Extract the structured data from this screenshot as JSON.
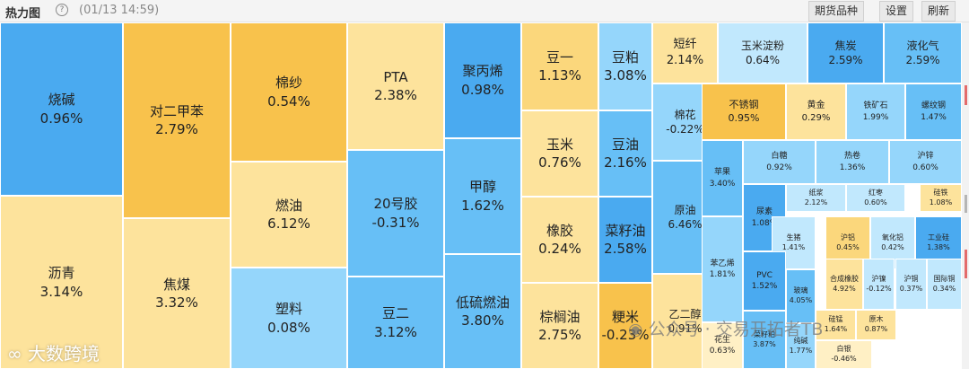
{
  "header": {
    "title": "热力图",
    "help_icon": "?",
    "timestamp": "(01/13 14:59)"
  },
  "buttons": {
    "futures_list": "期货品种",
    "settings": "设置",
    "refresh": "刷新"
  },
  "colors": {
    "deep_blue": "#4aaaf0",
    "mid_blue": "#67bff6",
    "light_blue": "#95d6fb",
    "pale_blue": "#c1e8fd",
    "deep_orange": "#f8c24c",
    "orange": "#fbd77c",
    "light_orange": "#fde39c",
    "pale_yellow": "#fff0c5"
  },
  "cells": [
    {
      "name": "烧碱",
      "value": "0.96%",
      "color": "#4aaaf0"
    },
    {
      "name": "沥青",
      "value": "3.14%",
      "color": "#fde39c"
    },
    {
      "name": "对二甲苯",
      "value": "2.79%",
      "color": "#f8c24c"
    },
    {
      "name": "焦煤",
      "value": "3.32%",
      "color": "#fde39c"
    },
    {
      "name": "棉纱",
      "value": "0.54%",
      "color": "#f8c24c"
    },
    {
      "name": "燃油",
      "value": "6.12%",
      "color": "#fde39c"
    },
    {
      "name": "塑料",
      "value": "0.08%",
      "color": "#95d6fb"
    },
    {
      "name": "PTA",
      "value": "2.38%",
      "color": "#fde39c"
    },
    {
      "name": "20号胶",
      "value": "-0.31%",
      "color": "#67bff6"
    },
    {
      "name": "豆二",
      "value": "3.12%",
      "color": "#67bff6"
    },
    {
      "name": "聚丙烯",
      "value": "0.98%",
      "color": "#4aaaf0"
    },
    {
      "name": "甲醇",
      "value": "1.62%",
      "color": "#67bff6"
    },
    {
      "name": "低硫燃油",
      "value": "3.80%",
      "color": "#67bff6"
    },
    {
      "name": "豆一",
      "value": "1.13%",
      "color": "#fbd77c"
    },
    {
      "name": "玉米",
      "value": "0.76%",
      "color": "#fde39c"
    },
    {
      "name": "橡胶",
      "value": "0.24%",
      "color": "#fde39c"
    },
    {
      "name": "棕榈油",
      "value": "2.75%",
      "color": "#fde39c"
    },
    {
      "name": "豆粕",
      "value": "3.08%",
      "color": "#95d6fb"
    },
    {
      "name": "豆油",
      "value": "2.16%",
      "color": "#67bff6"
    },
    {
      "name": "菜籽油",
      "value": "2.58%",
      "color": "#4aaaf0"
    },
    {
      "name": "粳米",
      "value": "-0.23%",
      "color": "#f8c24c"
    },
    {
      "name": "短纤",
      "value": "2.14%",
      "color": "#fde39c"
    },
    {
      "name": "棉花",
      "value": "-0.22%",
      "color": "#95d6fb"
    },
    {
      "name": "原油",
      "value": "6.46%",
      "color": "#67bff6"
    },
    {
      "name": "乙二醇",
      "value": "0.91%",
      "color": "#fde39c"
    },
    {
      "name": "玉米淀粉",
      "value": "0.64%",
      "color": "#c1e8fd"
    },
    {
      "name": "焦炭",
      "value": "2.59%",
      "color": "#4aaaf0"
    },
    {
      "name": "液化气",
      "value": "2.59%",
      "color": "#67bff6"
    },
    {
      "name": "不锈钢",
      "value": "0.95%",
      "color": "#f8c24c"
    },
    {
      "name": "黄金",
      "value": "0.29%",
      "color": "#fde39c"
    },
    {
      "name": "铁矿石",
      "value": "1.99%",
      "color": "#95d6fb"
    },
    {
      "name": "螺纹钢",
      "value": "1.47%",
      "color": "#67bff6"
    },
    {
      "name": "苹果",
      "value": "3.40%",
      "color": "#67bff6"
    },
    {
      "name": "白糖",
      "value": "0.92%",
      "color": "#95d6fb"
    },
    {
      "name": "热卷",
      "value": "1.36%",
      "color": "#95d6fb"
    },
    {
      "name": "沪锌",
      "value": "0.60%",
      "color": "#95d6fb"
    },
    {
      "name": "纸浆",
      "value": "2.12%",
      "color": "#c1e8fd"
    },
    {
      "name": "红枣",
      "value": "0.60%",
      "color": "#c1e8fd"
    },
    {
      "name": "硅铁",
      "value": "1.08%",
      "color": "#fde39c"
    },
    {
      "name": "尿素",
      "value": "1.08%",
      "color": "#4aaaf0"
    },
    {
      "name": "苯乙烯",
      "value": "1.81%",
      "color": "#95d6fb"
    },
    {
      "name": "生猪",
      "value": "1.41%",
      "color": "#c1e8fd"
    },
    {
      "name": "沪铝",
      "value": "0.45%",
      "color": "#fbd77c"
    },
    {
      "name": "氧化铝",
      "value": "0.42%",
      "color": "#c1e8fd"
    },
    {
      "name": "工业硅",
      "value": "1.38%",
      "color": "#4aaaf0"
    },
    {
      "name": "PVC",
      "value": "1.52%",
      "color": "#4aaaf0"
    },
    {
      "name": "玻璃",
      "value": "4.05%",
      "color": "#67bff6"
    },
    {
      "name": "合成橡胶",
      "value": "4.92%",
      "color": "#fde39c"
    },
    {
      "name": "沪镍",
      "value": "-0.12%",
      "color": "#c1e8fd"
    },
    {
      "name": "沪铜",
      "value": "0.37%",
      "color": "#c1e8fd"
    },
    {
      "name": "国际铜",
      "value": "0.34%",
      "color": "#c1e8fd"
    },
    {
      "name": "菜籽粕",
      "value": "3.87%",
      "color": "#67bff6"
    },
    {
      "name": "花生",
      "value": "0.63%",
      "color": "#fff0c5"
    },
    {
      "name": "纯碱",
      "value": "1.77%",
      "color": "#95d6fb"
    },
    {
      "name": "硅锰",
      "value": "1.64%",
      "color": "#fde39c"
    },
    {
      "name": "原木",
      "value": "0.87%",
      "color": "#fde39c"
    },
    {
      "name": "白银",
      "value": "-0.46%",
      "color": "#fff0c5"
    }
  ],
  "watermark": {
    "left": "大数跨境",
    "right": "公众号 · 交易开拓者TB"
  }
}
